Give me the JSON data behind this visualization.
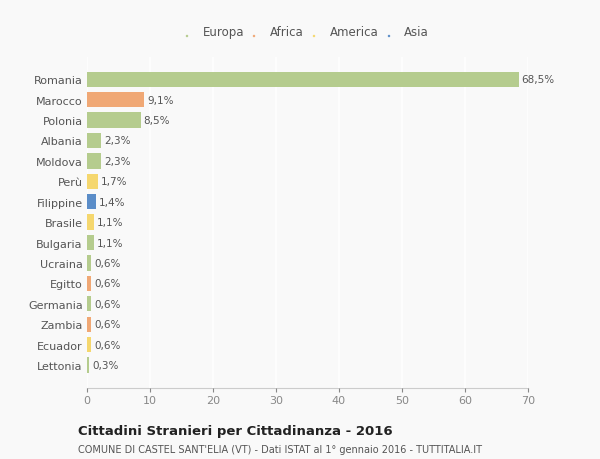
{
  "countries": [
    "Romania",
    "Marocco",
    "Polonia",
    "Albania",
    "Moldova",
    "Perù",
    "Filippine",
    "Brasile",
    "Bulgaria",
    "Ucraina",
    "Egitto",
    "Germania",
    "Zambia",
    "Ecuador",
    "Lettonia"
  ],
  "values": [
    68.5,
    9.1,
    8.5,
    2.3,
    2.3,
    1.7,
    1.4,
    1.1,
    1.1,
    0.6,
    0.6,
    0.6,
    0.6,
    0.6,
    0.3
  ],
  "labels": [
    "68,5%",
    "9,1%",
    "8,5%",
    "2,3%",
    "2,3%",
    "1,7%",
    "1,4%",
    "1,1%",
    "1,1%",
    "0,6%",
    "0,6%",
    "0,6%",
    "0,6%",
    "0,6%",
    "0,3%"
  ],
  "colors": [
    "#b5cc8e",
    "#f0a875",
    "#b5cc8e",
    "#b5cc8e",
    "#b5cc8e",
    "#f5d76e",
    "#5b8dc8",
    "#f5d76e",
    "#b5cc8e",
    "#b5cc8e",
    "#f0a875",
    "#b5cc8e",
    "#f0a875",
    "#f5d76e",
    "#b5cc8e"
  ],
  "legend_labels": [
    "Europa",
    "Africa",
    "America",
    "Asia"
  ],
  "legend_colors": [
    "#b5cc8e",
    "#f0a875",
    "#f5d76e",
    "#5b8dc8"
  ],
  "title": "Cittadini Stranieri per Cittadinanza - 2016",
  "subtitle": "COMUNE DI CASTEL SANT'ELIA (VT) - Dati ISTAT al 1° gennaio 2016 - TUTTITALIA.IT",
  "xlim": [
    0,
    70
  ],
  "xticks": [
    0,
    10,
    20,
    30,
    40,
    50,
    60,
    70
  ],
  "bg_color": "#f9f9f9",
  "grid_color": "#ffffff",
  "bar_height": 0.75
}
